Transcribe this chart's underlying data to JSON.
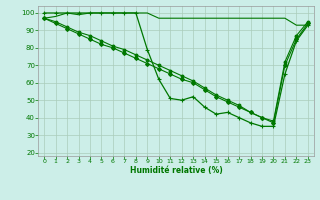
{
  "xlabel": "Humidité relative (%)",
  "background_color": "#cceee8",
  "grid_color": "#aaccbb",
  "line_color": "#007700",
  "xlim": [
    -0.5,
    23.5
  ],
  "ylim": [
    18,
    104
  ],
  "yticks": [
    20,
    30,
    40,
    50,
    60,
    70,
    80,
    90,
    100
  ],
  "xticks": [
    0,
    1,
    2,
    3,
    4,
    5,
    6,
    7,
    8,
    9,
    10,
    11,
    12,
    13,
    14,
    15,
    16,
    17,
    18,
    19,
    20,
    21,
    22,
    23
  ],
  "series": [
    {
      "x": [
        0,
        1,
        2,
        3,
        4,
        5,
        6,
        7,
        8,
        9,
        10,
        11,
        12,
        13,
        14,
        15,
        16,
        17,
        18,
        19,
        20,
        21,
        22,
        23
      ],
      "y": [
        97,
        98,
        100,
        99,
        100,
        100,
        100,
        100,
        100,
        100,
        97,
        97,
        97,
        97,
        97,
        97,
        97,
        97,
        97,
        97,
        97,
        97,
        93,
        93
      ],
      "marker": null,
      "linewidth": 0.8,
      "markersize": 0
    },
    {
      "x": [
        0,
        1,
        2,
        3,
        4,
        5,
        6,
        7,
        8,
        9,
        10,
        11,
        12,
        13,
        14,
        15,
        16,
        17,
        18,
        19,
        20,
        21,
        22,
        23
      ],
      "y": [
        100,
        100,
        100,
        100,
        100,
        100,
        100,
        100,
        100,
        79,
        62,
        51,
        50,
        52,
        46,
        42,
        43,
        40,
        37,
        35,
        35,
        65,
        84,
        93
      ],
      "marker": "+",
      "linewidth": 0.9,
      "markersize": 3.5
    },
    {
      "x": [
        0,
        1,
        2,
        3,
        4,
        5,
        6,
        7,
        8,
        9,
        10,
        11,
        12,
        13,
        14,
        15,
        16,
        17,
        18,
        19,
        20,
        21,
        22,
        23
      ],
      "y": [
        97,
        94,
        91,
        88,
        85,
        82,
        80,
        77,
        74,
        71,
        68,
        65,
        62,
        60,
        56,
        52,
        49,
        46,
        43,
        40,
        37,
        70,
        85,
        94
      ],
      "marker": "D",
      "linewidth": 0.8,
      "markersize": 2.0
    },
    {
      "x": [
        0,
        1,
        2,
        3,
        4,
        5,
        6,
        7,
        8,
        9,
        10,
        11,
        12,
        13,
        14,
        15,
        16,
        17,
        18,
        19,
        20,
        21,
        22,
        23
      ],
      "y": [
        97,
        95,
        92,
        89,
        87,
        84,
        81,
        79,
        76,
        73,
        70,
        67,
        64,
        61,
        57,
        53,
        50,
        47,
        43,
        40,
        38,
        72,
        87,
        95
      ],
      "marker": "o",
      "linewidth": 0.8,
      "markersize": 2.0
    }
  ]
}
